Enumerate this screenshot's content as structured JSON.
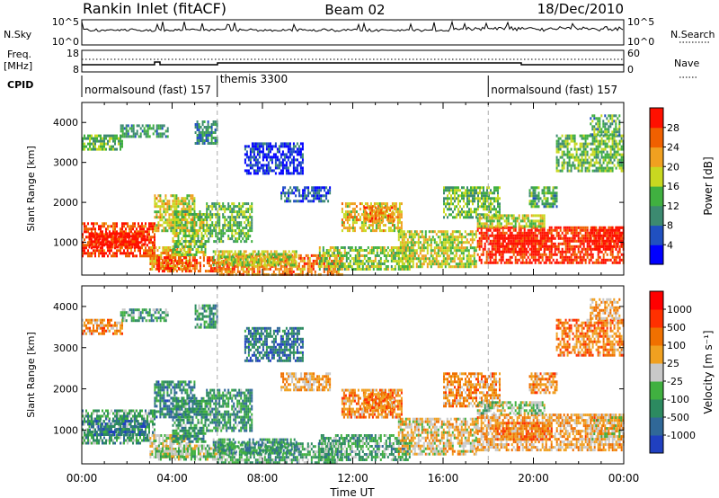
{
  "header": {
    "station": "Rankin Inlet (fitACF)",
    "beam": "Beam 02",
    "date": "18/Dec/2010"
  },
  "strips": {
    "nsky": {
      "label": "N.Sky",
      "ticks": [
        "10^5",
        "10^0"
      ],
      "right_label": "N.Search",
      "right_ticks": [
        "10^5",
        "10^0"
      ]
    },
    "freq": {
      "label_top": "Freq.",
      "label_bottom": "[MHz]",
      "ticks": [
        "18",
        "8"
      ],
      "right_label": "Nave",
      "right_ticks": [
        "60",
        "0"
      ]
    },
    "cpid": {
      "label": "CPID",
      "segments": [
        {
          "start_h": 0,
          "end_h": 6,
          "name": "normalsound (fast) 157"
        },
        {
          "start_h": 6,
          "end_h": 18,
          "name": "themis 3300"
        },
        {
          "start_h": 18,
          "end_h": 24,
          "name": "normalsound (fast) 157"
        }
      ]
    }
  },
  "chart_data": [
    {
      "type": "heatmap",
      "panel": "power",
      "ylabel": "Slant Range [km]",
      "xlabel": "Time UT",
      "xlim_hours": [
        0,
        24
      ],
      "ylim_km": [
        180,
        4500
      ],
      "yticks": [
        "1000",
        "2000",
        "3000",
        "4000"
      ],
      "xticks": [
        "00:00",
        "04:00",
        "08:00",
        "12:00",
        "16:00",
        "20:00",
        "00:00"
      ],
      "colorbar": {
        "label": "Power [dB]",
        "tick_labels": [
          "4",
          "8",
          "12",
          "16",
          "20",
          "24",
          "28"
        ],
        "colors": [
          "#0000ff",
          "#2050c0",
          "#3c8a70",
          "#40b040",
          "#c8d820",
          "#f0a020",
          "#f06000",
          "#ff1000"
        ]
      },
      "regions": [
        {
          "t0": 0.0,
          "t1": 3.2,
          "r0": 650,
          "r1": 1500,
          "v": 0.88
        },
        {
          "t0": 0.3,
          "t1": 2.8,
          "r0": 900,
          "r1": 1250,
          "v": 1.0
        },
        {
          "t0": 3.0,
          "t1": 4.8,
          "r0": 350,
          "r1": 900,
          "v": 0.7
        },
        {
          "t0": 3.3,
          "t1": 6.5,
          "r0": 300,
          "r1": 650,
          "v": 0.85
        },
        {
          "t0": 6.0,
          "t1": 11.5,
          "r0": 220,
          "r1": 700,
          "v": 0.75
        },
        {
          "t0": 5.8,
          "t1": 9.5,
          "r0": 450,
          "r1": 800,
          "v": 0.55
        },
        {
          "t0": 3.2,
          "t1": 5.0,
          "r0": 1300,
          "r1": 2200,
          "v": 0.6
        },
        {
          "t0": 4.0,
          "t1": 5.5,
          "r0": 700,
          "r1": 1800,
          "v": 0.5
        },
        {
          "t0": 5.5,
          "t1": 7.5,
          "r0": 1000,
          "r1": 2000,
          "v": 0.45
        },
        {
          "t0": 0.0,
          "t1": 1.8,
          "r0": 3350,
          "r1": 3700,
          "v": 0.45
        },
        {
          "t0": 1.7,
          "t1": 3.8,
          "r0": 3650,
          "r1": 3950,
          "v": 0.35
        },
        {
          "t0": 5.0,
          "t1": 6.0,
          "r0": 3500,
          "r1": 4050,
          "v": 0.3
        },
        {
          "t0": 7.2,
          "t1": 9.8,
          "r0": 2700,
          "r1": 3500,
          "v": 0.12
        },
        {
          "t0": 8.8,
          "t1": 11.0,
          "r0": 2000,
          "r1": 2400,
          "v": 0.2
        },
        {
          "t0": 11.5,
          "t1": 14.2,
          "r0": 1300,
          "r1": 2000,
          "v": 0.62
        },
        {
          "t0": 12.5,
          "t1": 13.8,
          "r0": 1500,
          "r1": 1900,
          "v": 0.78
        },
        {
          "t0": 10.5,
          "t1": 14.5,
          "r0": 300,
          "r1": 900,
          "v": 0.5
        },
        {
          "t0": 14.0,
          "t1": 17.5,
          "r0": 400,
          "r1": 1300,
          "v": 0.55
        },
        {
          "t0": 16.0,
          "t1": 18.5,
          "r0": 1600,
          "r1": 2400,
          "v": 0.45
        },
        {
          "t0": 17.5,
          "t1": 24.0,
          "r0": 500,
          "r1": 1400,
          "v": 0.92
        },
        {
          "t0": 18.3,
          "t1": 20.8,
          "r0": 750,
          "r1": 1200,
          "v": 1.0
        },
        {
          "t0": 22.5,
          "t1": 24.0,
          "r0": 800,
          "r1": 1400,
          "v": 1.0
        },
        {
          "t0": 17.5,
          "t1": 20.5,
          "r0": 1400,
          "r1": 1700,
          "v": 0.55
        },
        {
          "t0": 21.0,
          "t1": 24.0,
          "r0": 2800,
          "r1": 3700,
          "v": 0.45
        },
        {
          "t0": 22.5,
          "t1": 23.8,
          "r0": 3700,
          "r1": 4200,
          "v": 0.4
        },
        {
          "t0": 19.8,
          "t1": 21.0,
          "r0": 1900,
          "r1": 2400,
          "v": 0.4
        }
      ]
    },
    {
      "type": "heatmap",
      "panel": "velocity",
      "ylabel": "Slant Range [km]",
      "xlabel": "Time UT",
      "xlim_hours": [
        0,
        24
      ],
      "ylim_km": [
        180,
        4500
      ],
      "yticks": [
        "1000",
        "2000",
        "3000",
        "4000"
      ],
      "xticks": [
        "00:00",
        "04:00",
        "08:00",
        "12:00",
        "16:00",
        "20:00",
        "00:00"
      ],
      "colorbar": {
        "label": "Velocity [m s⁻¹]",
        "tick_labels": [
          "1000",
          "500",
          "100",
          "25",
          "-25",
          "-100",
          "-500",
          "-1000"
        ],
        "colors": [
          "#2040c0",
          "#306898",
          "#2c8a60",
          "#40b040",
          "#c8c8c8",
          "#f0a020",
          "#f07000",
          "#ff3000",
          "#ff0000"
        ]
      },
      "regions": [
        {
          "t0": 0.0,
          "t1": 3.2,
          "r0": 650,
          "r1": 1500,
          "v": 0.35
        },
        {
          "t0": 0.3,
          "t1": 2.8,
          "r0": 900,
          "r1": 1250,
          "v": 0.2
        },
        {
          "t0": 3.0,
          "t1": 4.8,
          "r0": 350,
          "r1": 900,
          "v": 0.5
        },
        {
          "t0": 3.3,
          "t1": 6.5,
          "r0": 300,
          "r1": 650,
          "v": 0.45
        },
        {
          "t0": 6.0,
          "t1": 11.5,
          "r0": 220,
          "r1": 700,
          "v": 0.35
        },
        {
          "t0": 5.8,
          "t1": 9.5,
          "r0": 450,
          "r1": 800,
          "v": 0.3
        },
        {
          "t0": 3.2,
          "t1": 5.0,
          "r0": 1300,
          "r1": 2200,
          "v": 0.25
        },
        {
          "t0": 4.0,
          "t1": 5.5,
          "r0": 700,
          "r1": 1800,
          "v": 0.3
        },
        {
          "t0": 5.5,
          "t1": 7.5,
          "r0": 1000,
          "r1": 2000,
          "v": 0.3
        },
        {
          "t0": 0.0,
          "t1": 1.8,
          "r0": 3350,
          "r1": 3700,
          "v": 0.65
        },
        {
          "t0": 1.7,
          "t1": 3.8,
          "r0": 3650,
          "r1": 3950,
          "v": 0.35
        },
        {
          "t0": 5.0,
          "t1": 6.0,
          "r0": 3500,
          "r1": 4050,
          "v": 0.3
        },
        {
          "t0": 7.2,
          "t1": 9.8,
          "r0": 2700,
          "r1": 3500,
          "v": 0.2
        },
        {
          "t0": 8.8,
          "t1": 11.0,
          "r0": 2000,
          "r1": 2400,
          "v": 0.6
        },
        {
          "t0": 11.5,
          "t1": 14.2,
          "r0": 1300,
          "r1": 2000,
          "v": 0.68
        },
        {
          "t0": 12.5,
          "t1": 13.8,
          "r0": 1500,
          "r1": 1900,
          "v": 0.7
        },
        {
          "t0": 10.5,
          "t1": 14.5,
          "r0": 300,
          "r1": 900,
          "v": 0.35
        },
        {
          "t0": 14.0,
          "t1": 17.5,
          "r0": 400,
          "r1": 1300,
          "v": 0.55
        },
        {
          "t0": 16.0,
          "t1": 18.5,
          "r0": 1600,
          "r1": 2400,
          "v": 0.65
        },
        {
          "t0": 17.5,
          "t1": 24.0,
          "r0": 500,
          "r1": 1400,
          "v": 0.62
        },
        {
          "t0": 18.3,
          "t1": 20.8,
          "r0": 750,
          "r1": 1200,
          "v": 0.7
        },
        {
          "t0": 22.5,
          "t1": 24.0,
          "r0": 800,
          "r1": 1400,
          "v": 0.55
        },
        {
          "t0": 17.5,
          "t1": 20.5,
          "r0": 1400,
          "r1": 1700,
          "v": 0.45
        },
        {
          "t0": 21.0,
          "t1": 24.0,
          "r0": 2800,
          "r1": 3700,
          "v": 0.7
        },
        {
          "t0": 22.5,
          "t1": 23.8,
          "r0": 3700,
          "r1": 4200,
          "v": 0.62
        },
        {
          "t0": 19.8,
          "t1": 21.0,
          "r0": 1900,
          "r1": 2400,
          "v": 0.65
        }
      ]
    }
  ]
}
